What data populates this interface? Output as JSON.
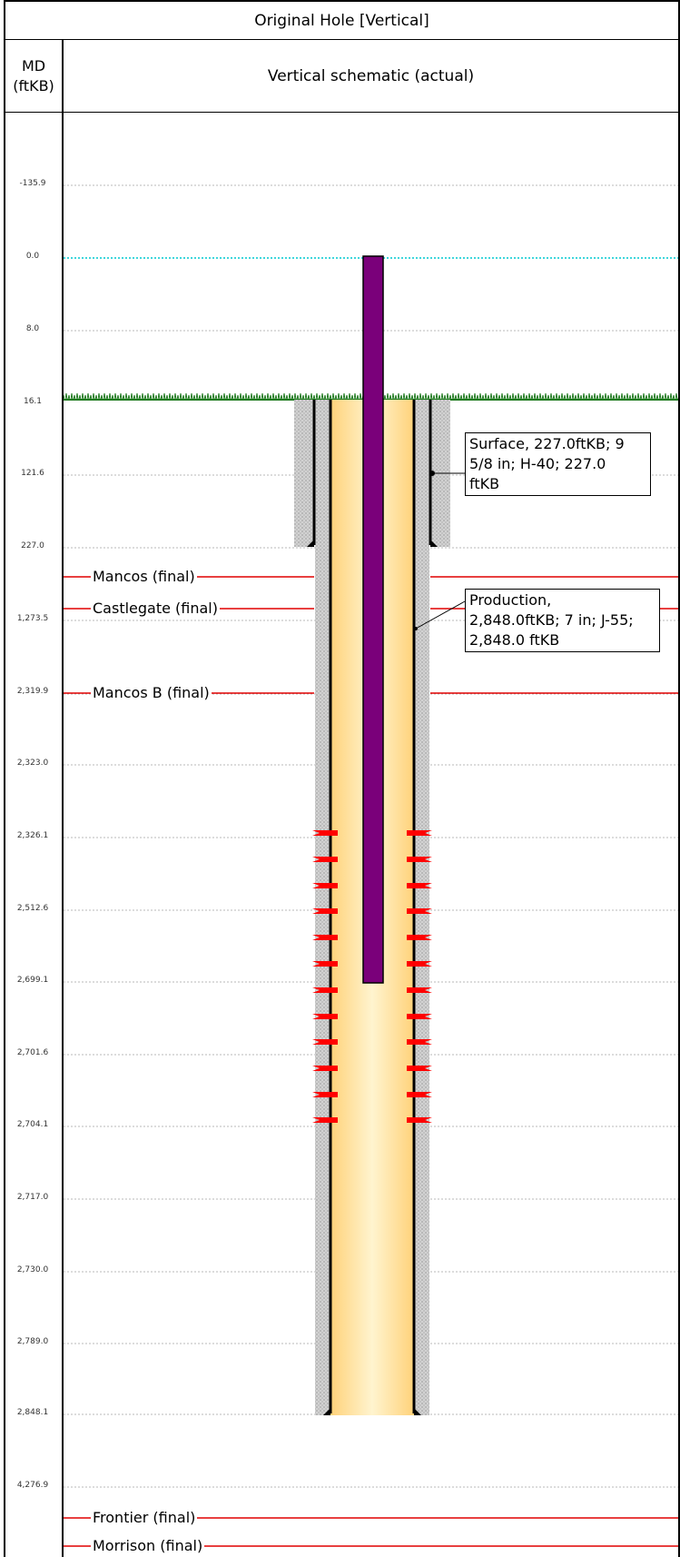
{
  "header": {
    "title": "Original Hole [Vertical]",
    "md_label_line1": "MD",
    "md_label_line2": "(ftKB)",
    "schematic_label": "Vertical schematic (actual)"
  },
  "depth_ticks": [
    "-135.9",
    "0.0",
    "8.0",
    "16.1",
    "121.6",
    "227.0",
    "1,273.5",
    "2,319.9",
    "2,323.0",
    "2,326.1",
    "2,512.6",
    "2,699.1",
    "2,701.6",
    "2,704.1",
    "2,717.0",
    "2,730.0",
    "2,789.0",
    "2,848.1",
    "4,276.9"
  ],
  "formations": [
    "Mancos (final)",
    "Castlegate (final)",
    "Mancos B (final)",
    "Frontier (final)",
    "Morrison (final)"
  ],
  "callouts": {
    "surface": [
      "Surface, 227.0ftKB; 9",
      "5/8 in; H-40; 227.0",
      "ftKB"
    ],
    "production": [
      "Production,",
      "2,848.0ftKB; 7 in; J-55;",
      "2,848.0 ftKB"
    ]
  },
  "colors": {
    "formation_line": "#e00000",
    "tubing": "#7a007a",
    "wellbore_fill": "#ffd98a",
    "cement": "#c8c8c8",
    "ground": "#1f7a1f",
    "kb_line": "#00c8d0",
    "perforation": "#ff0000"
  }
}
